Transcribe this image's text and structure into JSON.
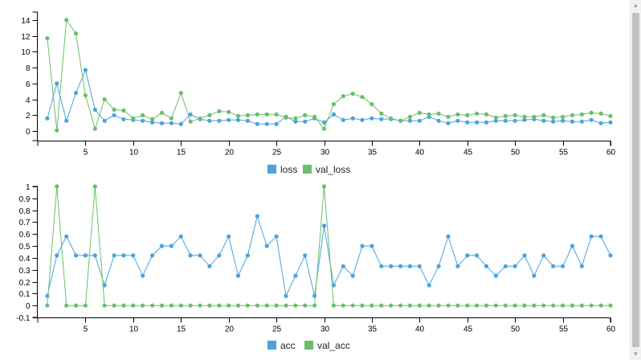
{
  "colors": {
    "series_1": "#4aa3df",
    "series_2": "#6abf69"
  },
  "chart_data": [
    {
      "type": "line",
      "x": [
        1,
        2,
        3,
        4,
        5,
        6,
        7,
        8,
        9,
        10,
        11,
        12,
        13,
        14,
        15,
        16,
        17,
        18,
        19,
        20,
        21,
        22,
        23,
        24,
        25,
        26,
        27,
        28,
        29,
        30,
        31,
        32,
        33,
        34,
        35,
        36,
        37,
        38,
        39,
        40,
        41,
        42,
        43,
        44,
        45,
        46,
        47,
        48,
        49,
        50,
        51,
        52,
        53,
        54,
        55,
        56,
        57,
        58,
        59,
        60
      ],
      "xticks": [
        5,
        10,
        15,
        20,
        25,
        30,
        35,
        40,
        45,
        50,
        55,
        60
      ],
      "yticks": [
        0,
        2,
        4,
        6,
        8,
        10,
        12,
        14
      ],
      "xlim": [
        0,
        60
      ],
      "ylim": [
        -1.2,
        15
      ],
      "series": [
        {
          "name": "loss",
          "color": "#4aa3df",
          "values": [
            1.6,
            6.0,
            1.3,
            4.8,
            7.7,
            2.7,
            1.3,
            2.0,
            1.5,
            1.4,
            1.3,
            1.1,
            1.0,
            1.0,
            0.9,
            2.1,
            1.5,
            1.3,
            1.3,
            1.4,
            1.4,
            1.3,
            0.9,
            0.9,
            0.9,
            1.8,
            1.2,
            1.2,
            1.6,
            1.1,
            2.1,
            1.4,
            1.6,
            1.4,
            1.6,
            1.5,
            1.5,
            1.3,
            1.3,
            1.3,
            1.8,
            1.3,
            1.0,
            1.3,
            1.1,
            1.1,
            1.1,
            1.3,
            1.3,
            1.3,
            1.4,
            1.5,
            1.3,
            1.2,
            1.3,
            1.2,
            1.2,
            1.4,
            1.0,
            1.1
          ]
        },
        {
          "name": "val_loss",
          "color": "#6abf69",
          "values": [
            11.7,
            0.1,
            14.0,
            12.3,
            4.5,
            0.3,
            4.0,
            2.7,
            2.6,
            1.6,
            2.0,
            1.5,
            2.3,
            1.6,
            4.8,
            1.2,
            1.6,
            2.0,
            2.5,
            2.4,
            1.9,
            2.0,
            2.1,
            2.1,
            2.1,
            1.7,
            1.6,
            2.0,
            1.8,
            0.3,
            3.4,
            4.4,
            4.7,
            4.3,
            3.4,
            2.2,
            1.6,
            1.3,
            1.8,
            2.3,
            2.1,
            2.2,
            1.8,
            2.1,
            2.0,
            2.2,
            2.1,
            1.7,
            1.9,
            2.0,
            1.8,
            1.8,
            2.0,
            1.7,
            1.8,
            2.0,
            2.1,
            2.3,
            2.2,
            1.9
          ]
        }
      ]
    },
    {
      "type": "line",
      "x": [
        1,
        2,
        3,
        4,
        5,
        6,
        7,
        8,
        9,
        10,
        11,
        12,
        13,
        14,
        15,
        16,
        17,
        18,
        19,
        20,
        21,
        22,
        23,
        24,
        25,
        26,
        27,
        28,
        29,
        30,
        31,
        32,
        33,
        34,
        35,
        36,
        37,
        38,
        39,
        40,
        41,
        42,
        43,
        44,
        45,
        46,
        47,
        48,
        49,
        50,
        51,
        52,
        53,
        54,
        55,
        56,
        57,
        58,
        59,
        60
      ],
      "xticks": [
        5,
        10,
        15,
        20,
        25,
        30,
        35,
        40,
        45,
        50,
        55,
        60
      ],
      "yticks": [
        -0.1,
        0,
        0.1,
        0.2,
        0.3,
        0.4,
        0.5,
        0.6,
        0.7,
        0.8,
        0.9,
        1
      ],
      "ytick_labels": [
        "-0.1",
        "0",
        "0.1",
        "0.2",
        "0.3",
        "0.4",
        "0.5",
        "0.6",
        "0.7",
        "0.8",
        "0.9",
        "1"
      ],
      "xlim": [
        0,
        60
      ],
      "ylim": [
        -0.1,
        1.0
      ],
      "series": [
        {
          "name": "acc",
          "color": "#4aa3df",
          "values": [
            0.08,
            0.42,
            0.58,
            0.42,
            0.42,
            0.42,
            0.17,
            0.42,
            0.42,
            0.42,
            0.25,
            0.42,
            0.5,
            0.5,
            0.58,
            0.42,
            0.42,
            0.33,
            0.42,
            0.58,
            0.25,
            0.42,
            0.75,
            0.5,
            0.58,
            0.08,
            0.25,
            0.42,
            0.08,
            0.67,
            0.17,
            0.33,
            0.25,
            0.5,
            0.5,
            0.33,
            0.33,
            0.33,
            0.33,
            0.33,
            0.17,
            0.33,
            0.58,
            0.33,
            0.42,
            0.42,
            0.33,
            0.25,
            0.33,
            0.33,
            0.42,
            0.25,
            0.42,
            0.33,
            0.33,
            0.5,
            0.33,
            0.58,
            0.58,
            0.42
          ]
        },
        {
          "name": "val_acc",
          "color": "#6abf69",
          "values": [
            0,
            1,
            0,
            0,
            0,
            1,
            0,
            0,
            0,
            0,
            0,
            0,
            0,
            0,
            0,
            0,
            0,
            0,
            0,
            0,
            0,
            0,
            0,
            0,
            0,
            0,
            0,
            0,
            0,
            1,
            0,
            0,
            0,
            0,
            0,
            0,
            0,
            0,
            0,
            0,
            0,
            0,
            0,
            0,
            0,
            0,
            0,
            0,
            0,
            0,
            0,
            0,
            0,
            0,
            0,
            0,
            0,
            0,
            0,
            0
          ]
        }
      ]
    }
  ]
}
